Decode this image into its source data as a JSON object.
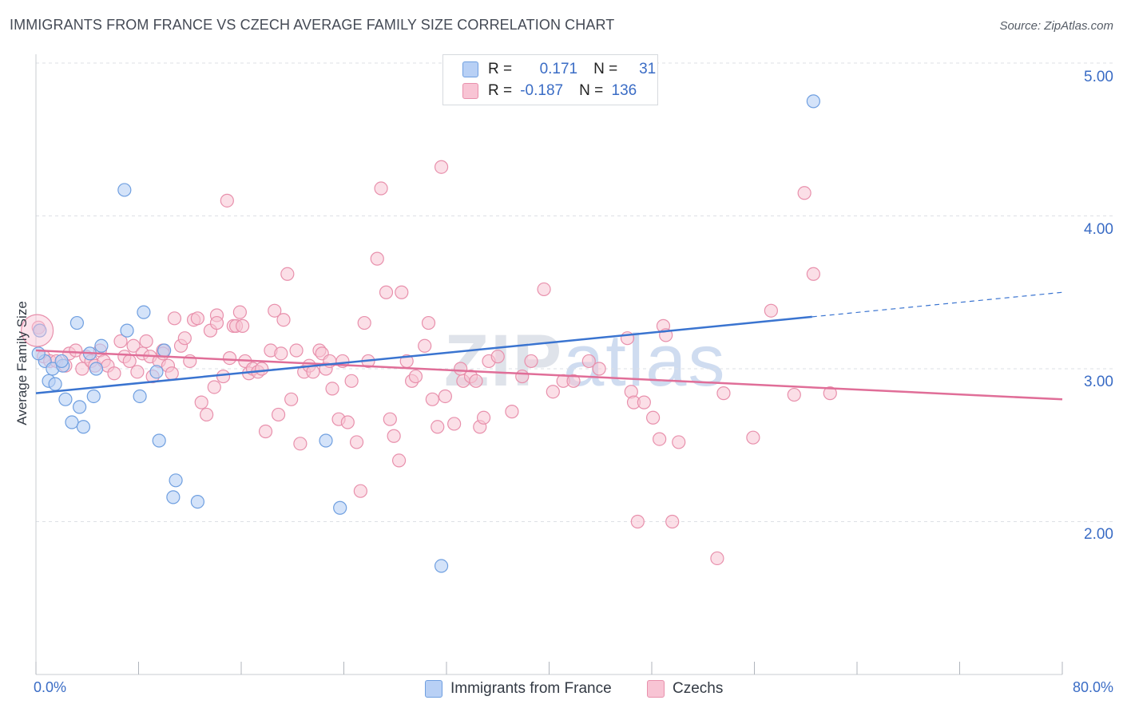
{
  "title": "IMMIGRANTS FROM FRANCE VS CZECH AVERAGE FAMILY SIZE CORRELATION CHART",
  "source": "Source: ZipAtlas.com",
  "watermark": {
    "zip": "ZIP",
    "atlas": "atlas"
  },
  "legend_stats": [
    {
      "r_label": "R =",
      "r_value": "0.171",
      "n_label": "N =",
      "n_value": "31"
    },
    {
      "r_label": "R =",
      "r_value": "-0.187",
      "n_label": "N =",
      "n_value": "136"
    }
  ],
  "colors": {
    "france_fill": "#b8d0f5",
    "france_stroke": "#6f9fe0",
    "france_line": "#3a74d0",
    "czech_fill": "#f8c4d4",
    "czech_stroke": "#e890ac",
    "czech_line": "#e06e98",
    "axis_text": "#3a6cc5",
    "grid": "#dde0e5"
  },
  "chart_data": {
    "type": "scatter",
    "title": "IMMIGRANTS FROM FRANCE VS CZECH AVERAGE FAMILY SIZE CORRELATION CHART",
    "xlabel": "",
    "ylabel": "Average Family Size",
    "x_tick_labels": [
      "0.0%",
      "80.0%"
    ],
    "y_tick_labels": [
      "2.00",
      "3.00",
      "4.00",
      "5.00"
    ],
    "xlim": [
      0,
      80
    ],
    "ylim": [
      1.0,
      5.1
    ],
    "grid": true,
    "legend_position": "bottom-center",
    "series": [
      {
        "name": "Immigrants from France",
        "points": [
          [
            0.3,
            3.25
          ],
          [
            0.7,
            3.05
          ],
          [
            1.0,
            2.92
          ],
          [
            1.3,
            3.0
          ],
          [
            1.5,
            2.9
          ],
          [
            2.1,
            3.02
          ],
          [
            2.3,
            2.8
          ],
          [
            2.8,
            2.65
          ],
          [
            3.2,
            3.3
          ],
          [
            3.4,
            2.75
          ],
          [
            3.7,
            2.62
          ],
          [
            4.2,
            3.1
          ],
          [
            4.5,
            2.82
          ],
          [
            4.7,
            3.0
          ],
          [
            5.1,
            3.15
          ],
          [
            6.9,
            4.17
          ],
          [
            7.1,
            3.25
          ],
          [
            8.1,
            2.82
          ],
          [
            8.4,
            3.37
          ],
          [
            9.4,
            2.98
          ],
          [
            9.6,
            2.53
          ],
          [
            10.0,
            3.12
          ],
          [
            10.7,
            2.16
          ],
          [
            10.9,
            2.27
          ],
          [
            12.6,
            2.13
          ],
          [
            22.6,
            2.53
          ],
          [
            23.7,
            2.09
          ],
          [
            31.6,
            1.71
          ],
          [
            60.6,
            4.75
          ],
          [
            0.2,
            3.1
          ],
          [
            2.0,
            3.05
          ]
        ],
        "trend": {
          "x": [
            0,
            60.5
          ],
          "y": [
            2.84,
            3.34
          ],
          "dashed_to": {
            "x": [
              60.5,
              80
            ],
            "y": [
              3.34,
              3.5
            ]
          }
        }
      },
      {
        "name": "Czechs",
        "points": [
          [
            0.2,
            3.27
          ],
          [
            0.6,
            3.08
          ],
          [
            1.1,
            3.05
          ],
          [
            1.6,
            3.05
          ],
          [
            2.3,
            3.02
          ],
          [
            2.6,
            3.1
          ],
          [
            3.1,
            3.12
          ],
          [
            3.6,
            3.0
          ],
          [
            3.9,
            3.08
          ],
          [
            4.3,
            3.05
          ],
          [
            4.6,
            3.02
          ],
          [
            5.0,
            3.12
          ],
          [
            5.3,
            3.05
          ],
          [
            5.6,
            3.02
          ],
          [
            6.1,
            2.97
          ],
          [
            6.6,
            3.18
          ],
          [
            6.9,
            3.08
          ],
          [
            7.3,
            3.05
          ],
          [
            7.6,
            3.15
          ],
          [
            7.9,
            2.98
          ],
          [
            8.3,
            3.1
          ],
          [
            8.6,
            3.18
          ],
          [
            8.9,
            3.08
          ],
          [
            9.1,
            2.95
          ],
          [
            9.6,
            3.05
          ],
          [
            9.9,
            3.12
          ],
          [
            10.3,
            3.02
          ],
          [
            10.6,
            2.97
          ],
          [
            10.8,
            3.33
          ],
          [
            11.3,
            3.15
          ],
          [
            11.6,
            3.2
          ],
          [
            12.0,
            3.05
          ],
          [
            12.3,
            3.32
          ],
          [
            12.6,
            3.33
          ],
          [
            12.9,
            2.78
          ],
          [
            13.3,
            2.7
          ],
          [
            13.6,
            3.25
          ],
          [
            13.9,
            2.88
          ],
          [
            14.1,
            3.35
          ],
          [
            14.6,
            2.95
          ],
          [
            14.9,
            4.1
          ],
          [
            15.1,
            3.07
          ],
          [
            15.4,
            3.28
          ],
          [
            15.6,
            3.28
          ],
          [
            15.9,
            3.37
          ],
          [
            16.3,
            3.05
          ],
          [
            16.6,
            2.97
          ],
          [
            16.9,
            3.0
          ],
          [
            17.3,
            2.98
          ],
          [
            17.6,
            3.0
          ],
          [
            17.9,
            2.59
          ],
          [
            18.3,
            3.12
          ],
          [
            18.6,
            3.38
          ],
          [
            18.9,
            2.7
          ],
          [
            19.3,
            3.32
          ],
          [
            19.6,
            3.62
          ],
          [
            19.9,
            2.8
          ],
          [
            20.3,
            3.12
          ],
          [
            20.6,
            2.51
          ],
          [
            20.9,
            2.98
          ],
          [
            21.3,
            3.02
          ],
          [
            21.6,
            2.98
          ],
          [
            22.1,
            3.12
          ],
          [
            22.3,
            3.1
          ],
          [
            22.6,
            3.0
          ],
          [
            22.9,
            3.05
          ],
          [
            23.1,
            2.87
          ],
          [
            23.6,
            2.67
          ],
          [
            23.9,
            3.05
          ],
          [
            24.3,
            2.65
          ],
          [
            24.6,
            2.92
          ],
          [
            25.0,
            2.52
          ],
          [
            25.3,
            2.2
          ],
          [
            25.6,
            3.3
          ],
          [
            25.9,
            3.05
          ],
          [
            26.6,
            3.72
          ],
          [
            26.9,
            4.18
          ],
          [
            27.3,
            3.5
          ],
          [
            27.6,
            2.67
          ],
          [
            27.9,
            2.56
          ],
          [
            28.3,
            2.4
          ],
          [
            28.5,
            3.5
          ],
          [
            28.9,
            3.05
          ],
          [
            29.3,
            2.92
          ],
          [
            29.6,
            2.95
          ],
          [
            30.3,
            3.15
          ],
          [
            30.6,
            3.3
          ],
          [
            30.9,
            2.8
          ],
          [
            31.3,
            2.62
          ],
          [
            31.6,
            4.32
          ],
          [
            31.9,
            2.82
          ],
          [
            32.6,
            2.64
          ],
          [
            33.1,
            3.0
          ],
          [
            33.3,
            2.92
          ],
          [
            33.9,
            2.95
          ],
          [
            34.3,
            2.92
          ],
          [
            34.6,
            2.62
          ],
          [
            34.9,
            2.68
          ],
          [
            35.3,
            3.05
          ],
          [
            36.0,
            3.08
          ],
          [
            37.1,
            2.72
          ],
          [
            37.9,
            2.95
          ],
          [
            38.6,
            3.05
          ],
          [
            39.6,
            3.52
          ],
          [
            40.3,
            2.85
          ],
          [
            41.1,
            2.92
          ],
          [
            41.9,
            2.92
          ],
          [
            43.1,
            3.05
          ],
          [
            43.9,
            3.0
          ],
          [
            46.1,
            3.2
          ],
          [
            46.4,
            2.85
          ],
          [
            46.6,
            2.78
          ],
          [
            46.9,
            2.0
          ],
          [
            47.4,
            2.78
          ],
          [
            48.1,
            2.68
          ],
          [
            48.6,
            2.54
          ],
          [
            48.9,
            3.28
          ],
          [
            49.1,
            3.22
          ],
          [
            49.6,
            2.0
          ],
          [
            50.1,
            2.52
          ],
          [
            53.6,
            2.84
          ],
          [
            53.1,
            1.76
          ],
          [
            55.9,
            2.55
          ],
          [
            57.3,
            3.38
          ],
          [
            59.1,
            2.83
          ],
          [
            59.9,
            4.15
          ],
          [
            60.6,
            3.62
          ],
          [
            61.9,
            2.84
          ],
          [
            9.9,
            3.1
          ],
          [
            14.1,
            3.3
          ],
          [
            16.1,
            3.28
          ],
          [
            19.1,
            3.1
          ]
        ],
        "trend": {
          "x": [
            0,
            80
          ],
          "y": [
            3.12,
            2.8
          ]
        }
      }
    ]
  }
}
